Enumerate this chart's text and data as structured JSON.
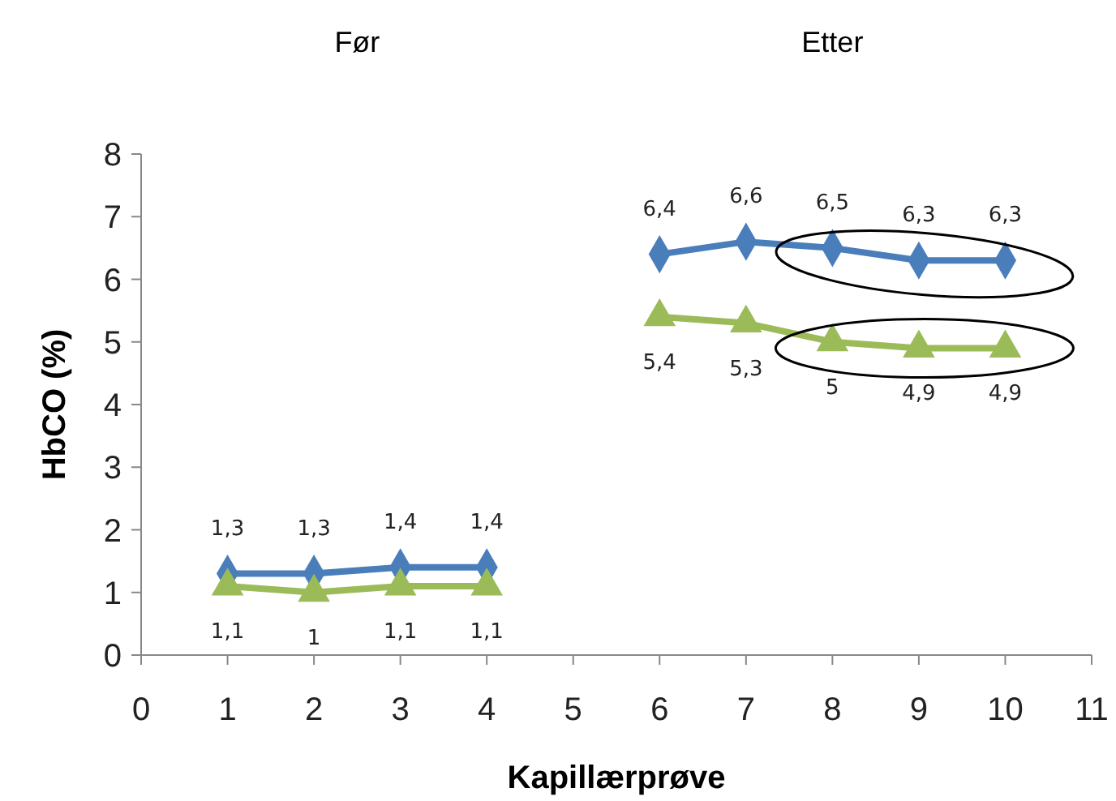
{
  "chart_data": {
    "type": "line",
    "xlabel": "Kapillærprøve",
    "ylabel": "HbCO (%)",
    "annotations": [
      "Før",
      "Etter"
    ],
    "xlim": [
      0,
      11
    ],
    "xticks": [
      0,
      1,
      2,
      3,
      4,
      5,
      6,
      7,
      8,
      9,
      10,
      11
    ],
    "ylim": [
      0,
      8
    ],
    "yticks": [
      0,
      1,
      2,
      3,
      4,
      5,
      6,
      7,
      8
    ],
    "grid": false,
    "series": [
      {
        "color": "#4a7ebb",
        "marker": "diamond",
        "x": [
          1,
          2,
          3,
          4
        ],
        "values": [
          1.3,
          1.3,
          1.4,
          1.4
        ],
        "value_labels": [
          "1,3",
          "1,3",
          "1,4",
          "1,4"
        ]
      },
      {
        "color": "#9bbb59",
        "marker": "triangle",
        "x": [
          1,
          2,
          3,
          4
        ],
        "values": [
          1.1,
          1.0,
          1.1,
          1.1
        ],
        "value_labels": [
          "1,1",
          "1",
          "1,1",
          "1,1"
        ]
      },
      {
        "color": "#4a7ebb",
        "marker": "diamond",
        "x": [
          6,
          7,
          8,
          9,
          10
        ],
        "values": [
          6.4,
          6.6,
          6.5,
          6.3,
          6.3
        ],
        "value_labels": [
          "6,4",
          "6,6",
          "6,5",
          "6,3",
          "6,3"
        ]
      },
      {
        "color": "#9bbb59",
        "marker": "triangle",
        "x": [
          6,
          7,
          8,
          9,
          10
        ],
        "values": [
          5.4,
          5.3,
          5.0,
          4.9,
          4.9
        ],
        "value_labels": [
          "5,4",
          "5,3",
          "5",
          "4,9",
          "4,9"
        ]
      }
    ]
  }
}
